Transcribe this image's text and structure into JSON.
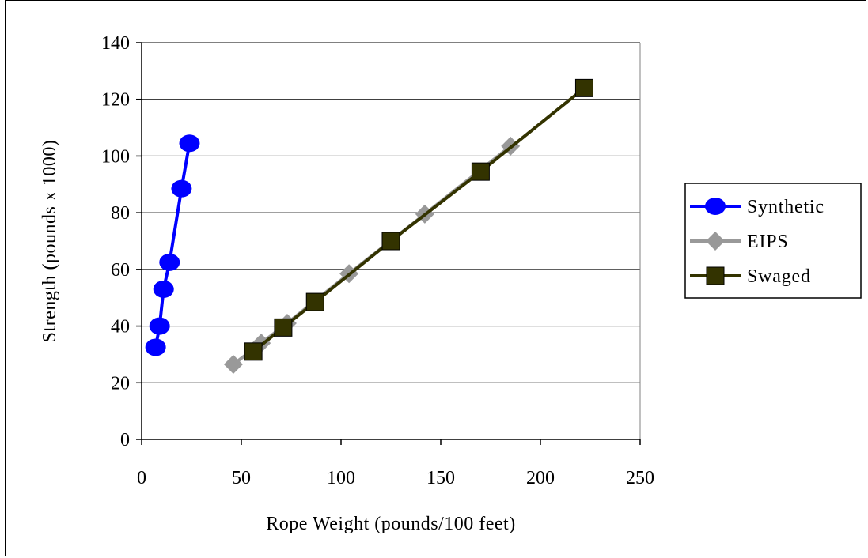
{
  "chart_data": {
    "type": "line",
    "title": "",
    "xlabel": "Rope Weight (pounds/100 feet)",
    "ylabel": "Strength (pounds x 1000)",
    "xlim": [
      0,
      250
    ],
    "ylim": [
      0,
      140
    ],
    "x_ticks": [
      0,
      50,
      100,
      150,
      200,
      250
    ],
    "y_ticks": [
      0,
      20,
      40,
      60,
      80,
      100,
      120,
      140
    ],
    "grid": "horizontal",
    "legend_position": "right",
    "series": [
      {
        "name": "Synthetic",
        "color": "#0000ff",
        "marker": "circle",
        "points": [
          [
            7,
            32.5
          ],
          [
            9,
            40
          ],
          [
            11,
            53
          ],
          [
            14,
            62.5
          ],
          [
            20,
            88.5
          ],
          [
            24,
            104.5
          ]
        ]
      },
      {
        "name": "EIPS",
        "color": "#999999",
        "marker": "diamond",
        "points": [
          [
            46,
            26.5
          ],
          [
            60,
            34
          ],
          [
            73,
            41
          ],
          [
            104,
            58.5
          ],
          [
            142,
            79.5
          ],
          [
            185,
            103.5
          ]
        ]
      },
      {
        "name": "Swaged",
        "color": "#333300",
        "marker": "square",
        "points": [
          [
            56,
            31
          ],
          [
            71,
            39.5
          ],
          [
            87,
            48.5
          ],
          [
            125,
            70
          ],
          [
            170,
            94.5
          ],
          [
            222,
            124
          ]
        ]
      }
    ]
  }
}
